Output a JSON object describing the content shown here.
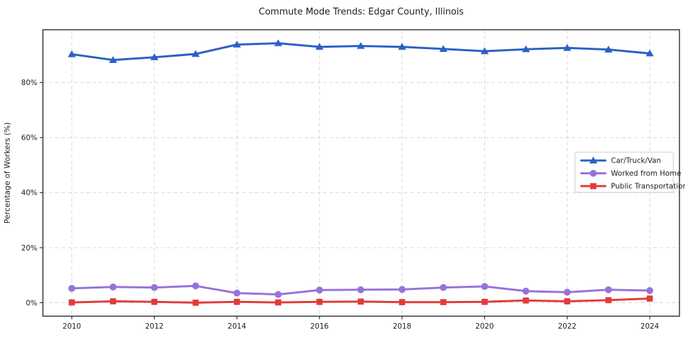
{
  "chart_data": {
    "type": "line",
    "title": "Commute Mode Trends: Edgar County, Illinois",
    "xlabel": "",
    "ylabel": "Percentage of Workers (%)",
    "x": [
      2010,
      2011,
      2012,
      2013,
      2014,
      2015,
      2016,
      2017,
      2018,
      2019,
      2020,
      2021,
      2022,
      2023,
      2024
    ],
    "x_ticks": [
      2010,
      2012,
      2014,
      2016,
      2018,
      2020,
      2022,
      2024
    ],
    "x_tick_labels": [
      "2010",
      "2012",
      "2014",
      "2016",
      "2018",
      "2020",
      "2022",
      "2024"
    ],
    "y_ticks": [
      0,
      20,
      40,
      60,
      80
    ],
    "y_tick_labels": [
      "0%",
      "20%",
      "40%",
      "60%",
      "80%"
    ],
    "xlim": [
      2009.3,
      2024.72
    ],
    "ylim": [
      -4.9,
      99.2
    ],
    "grid": true,
    "grid_style": "dashed",
    "legend_position": "center-right",
    "series": [
      {
        "name": "Car/Truck/Van",
        "color": "#2a61c5",
        "marker": "triangle",
        "values": [
          90.3,
          88.2,
          89.2,
          90.4,
          93.8,
          94.3,
          93.0,
          93.3,
          93.0,
          92.2,
          91.4,
          92.1,
          92.6,
          92.0,
          90.6
        ]
      },
      {
        "name": "Worked from Home",
        "color": "#9673d9",
        "marker": "circle",
        "values": [
          5.2,
          5.7,
          5.5,
          6.1,
          3.5,
          3.0,
          4.6,
          4.7,
          4.8,
          5.5,
          5.9,
          4.2,
          3.8,
          4.7,
          4.4
        ]
      },
      {
        "name": "Public Transportation",
        "color": "#e23b3b",
        "marker": "square",
        "values": [
          0.1,
          0.5,
          0.3,
          0.0,
          0.3,
          0.1,
          0.3,
          0.4,
          0.2,
          0.2,
          0.3,
          0.8,
          0.5,
          0.9,
          1.5
        ]
      }
    ],
    "colors": {
      "background": "#ffffff",
      "axis": "#2b2b2b",
      "text": "#1c1c1c",
      "grid": "#d9d9d9",
      "legend_border": "#cccccc",
      "legend_background": "#ffffff"
    }
  }
}
